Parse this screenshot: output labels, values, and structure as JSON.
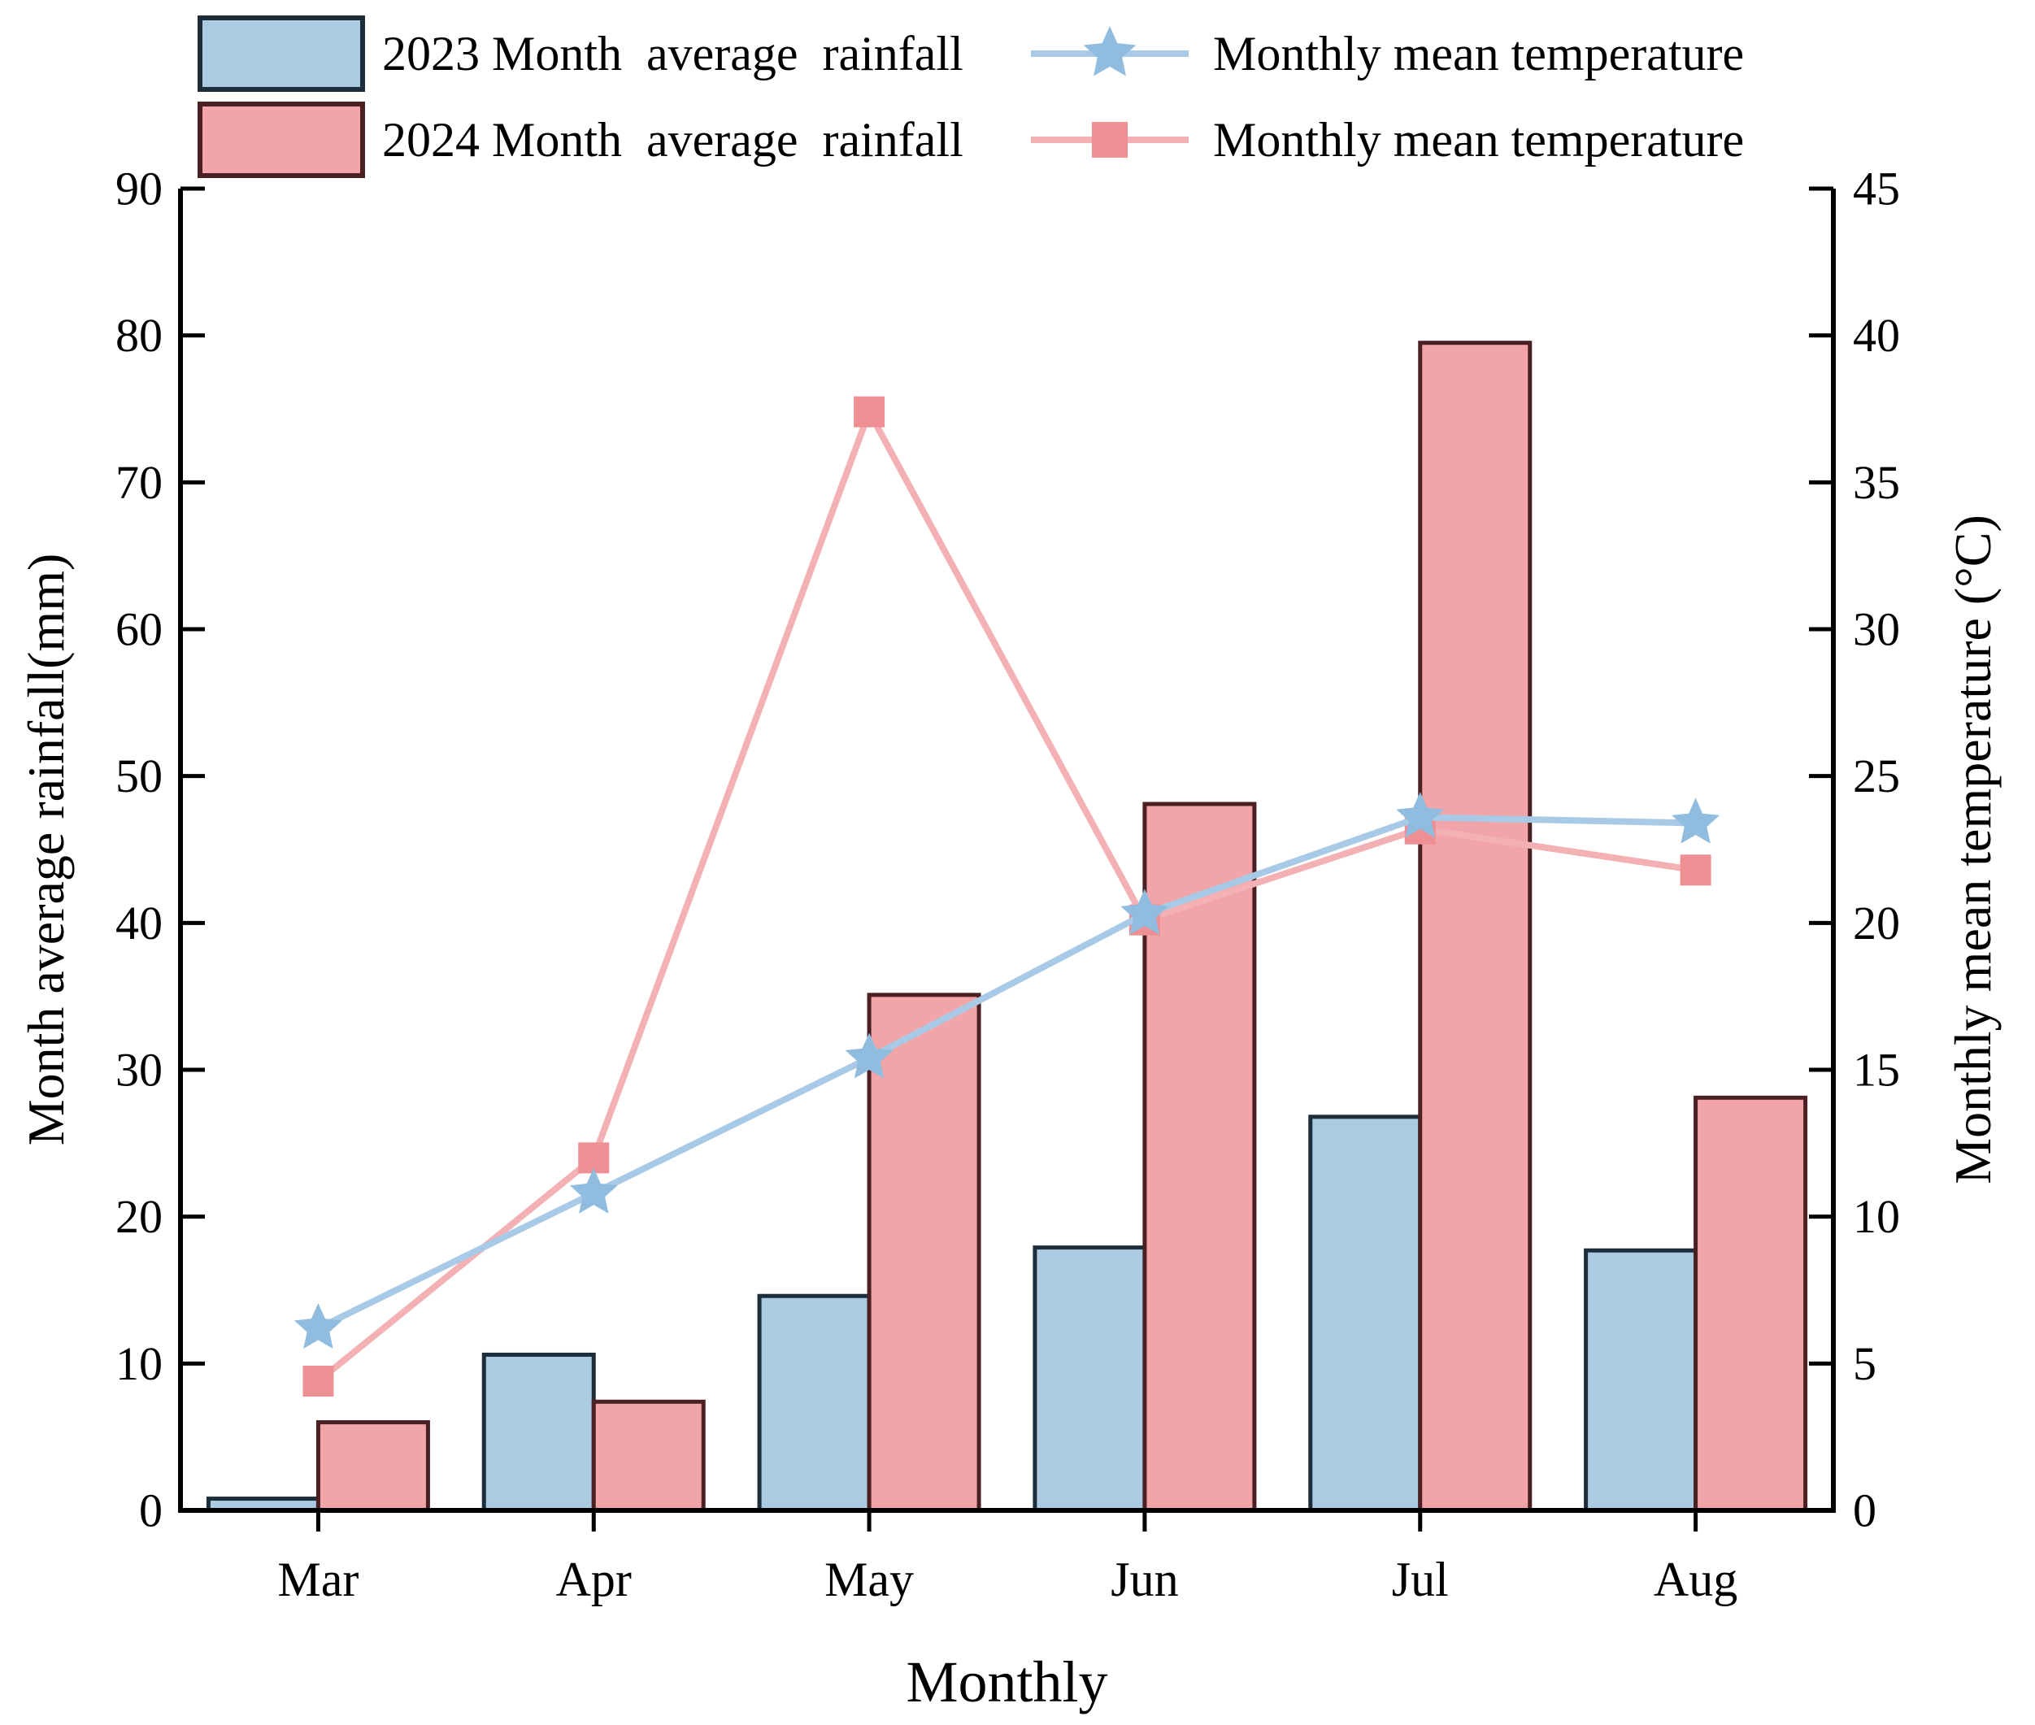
{
  "figure": {
    "background": "#ffffff"
  },
  "chart_data": {
    "type": "bar",
    "subtype": "grouped-bar-with-dual-axis-lines",
    "categories": [
      "Mar",
      "Apr",
      "May",
      "Jun",
      "Jul",
      "Aug"
    ],
    "series": [
      {
        "name": "2023 Month  average  rainfall",
        "kind": "bar",
        "axis": "left",
        "values": [
          0.8,
          10.6,
          14.6,
          17.9,
          26.8,
          17.7
        ],
        "fill": "#abcbe2",
        "edge": "#1d2d3a"
      },
      {
        "name": "2024 Month  average  rainfall",
        "kind": "bar",
        "axis": "left",
        "values": [
          6.0,
          7.4,
          35.1,
          48.1,
          79.5,
          28.1
        ],
        "fill": "#f2a5a9",
        "edge": "#4a2022"
      },
      {
        "name": "Monthly mean temperature",
        "kind": "line",
        "axis": "right",
        "marker": "star",
        "values": [
          6.2,
          10.8,
          15.4,
          20.3,
          23.6,
          23.4
        ],
        "line_color": "#a9cae6",
        "marker_color": "#8fbcdf"
      },
      {
        "name": "Monthly mean temperature",
        "kind": "line",
        "axis": "right",
        "marker": "square",
        "values": [
          4.4,
          12.0,
          37.4,
          20.1,
          23.2,
          21.8
        ],
        "line_color": "#f3b1b4",
        "marker_color": "#ee8f93"
      }
    ],
    "xlabel": "Monthly",
    "ylabel_left": "Month average rainfall(mm)",
    "ylabel_right": "Monthly mean temperature (°C)",
    "ylim_left": [
      0,
      90
    ],
    "ytick_step_left": 10,
    "ylim_right": [
      0,
      45
    ],
    "ytick_step_right": 5,
    "grid": "off",
    "legend_position": "upper-left",
    "axis_color": "#000000"
  }
}
